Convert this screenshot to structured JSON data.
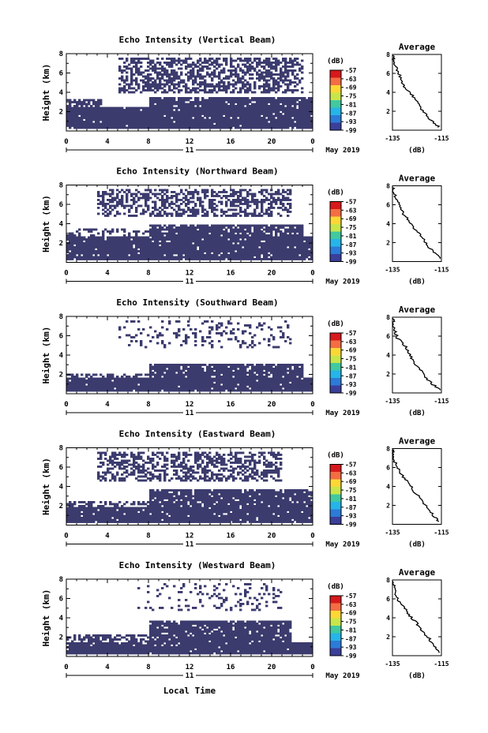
{
  "figure": {
    "x_label": "Local Time",
    "day_label": "11",
    "month_label": "May 2019"
  },
  "chart_data": [
    {
      "type": "heatmap",
      "title": "Echo Intensity (Vertical Beam)",
      "ylabel": "Height (km)",
      "xlim": [
        0,
        24
      ],
      "ylim": [
        0,
        8
      ],
      "x_ticks": [
        "0",
        "4",
        "8",
        "12",
        "16",
        "20",
        "0"
      ],
      "y_ticks": [
        "2",
        "4",
        "6",
        "8"
      ],
      "colorbar": {
        "unit": "(dB)",
        "labels": [
          "-57",
          "-63",
          "-69",
          "-75",
          "-81",
          "-87",
          "-93",
          "-99"
        ]
      },
      "layers": [
        {
          "x0": 0,
          "x1": 24,
          "y0": 0.2,
          "y1": 2.5,
          "density": 0.96
        },
        {
          "x0": 0,
          "x1": 3.5,
          "y0": 2.5,
          "y1": 3.4,
          "density": 0.7
        },
        {
          "x0": 8,
          "x1": 24,
          "y0": 2.5,
          "y1": 3.6,
          "density": 0.9
        },
        {
          "x0": 5,
          "x1": 23,
          "y0": 4.0,
          "y1": 7.6,
          "density": 0.55
        }
      ],
      "avg": {
        "title": "Average",
        "xlabel": "(dB)",
        "xlim": [
          -135,
          -115
        ],
        "x_ticks": [
          "-135",
          "-115"
        ],
        "y_ticks": [
          "2",
          "4",
          "6",
          "8"
        ],
        "profile": [
          [
            0.3,
            -116
          ],
          [
            1,
            -119
          ],
          [
            1.8,
            -122
          ],
          [
            2.6,
            -124
          ],
          [
            3.4,
            -126
          ],
          [
            4.2,
            -129
          ],
          [
            5,
            -131
          ],
          [
            5.8,
            -132
          ],
          [
            6.6,
            -133.5
          ],
          [
            7.4,
            -134.5
          ],
          [
            7.9,
            -135
          ]
        ]
      }
    },
    {
      "type": "heatmap",
      "title": "Echo Intensity (Northward Beam)",
      "ylabel": "Height (km)",
      "xlim": [
        0,
        24
      ],
      "ylim": [
        0,
        8
      ],
      "x_ticks": [
        "0",
        "4",
        "8",
        "12",
        "16",
        "20",
        "0"
      ],
      "y_ticks": [
        "2",
        "4",
        "6",
        "8"
      ],
      "colorbar": {
        "unit": "(dB)",
        "labels": [
          "-57",
          "-63",
          "-69",
          "-75",
          "-81",
          "-87",
          "-93",
          "-99"
        ]
      },
      "layers": [
        {
          "x0": 0,
          "x1": 24,
          "y0": 0.2,
          "y1": 2.6,
          "density": 0.95
        },
        {
          "x0": 0,
          "x1": 8,
          "y0": 2.6,
          "y1": 3.6,
          "density": 0.35
        },
        {
          "x0": 8,
          "x1": 23,
          "y0": 2.6,
          "y1": 4.0,
          "density": 0.9
        },
        {
          "x0": 3,
          "x1": 22,
          "y0": 4.8,
          "y1": 7.6,
          "density": 0.5
        }
      ],
      "avg": {
        "title": "Average",
        "xlabel": "(dB)",
        "xlim": [
          -135,
          -115
        ],
        "x_ticks": [
          "-135",
          "-115"
        ],
        "y_ticks": [
          "2",
          "4",
          "6",
          "8"
        ],
        "profile": [
          [
            0.3,
            -115.5
          ],
          [
            1,
            -118
          ],
          [
            1.8,
            -121
          ],
          [
            2.6,
            -123
          ],
          [
            3.4,
            -126
          ],
          [
            4.2,
            -128
          ],
          [
            5,
            -130.5
          ],
          [
            5.8,
            -132
          ],
          [
            6.6,
            -133.5
          ],
          [
            7.4,
            -134.5
          ],
          [
            7.9,
            -135
          ]
        ]
      }
    },
    {
      "type": "heatmap",
      "title": "Echo Intensity (Southward Beam)",
      "ylabel": "Height (km)",
      "xlim": [
        0,
        24
      ],
      "ylim": [
        0,
        8
      ],
      "x_ticks": [
        "0",
        "4",
        "8",
        "12",
        "16",
        "20",
        "0"
      ],
      "y_ticks": [
        "2",
        "4",
        "6",
        "8"
      ],
      "colorbar": {
        "unit": "(dB)",
        "labels": [
          "-57",
          "-63",
          "-69",
          "-75",
          "-81",
          "-87",
          "-93",
          "-99"
        ]
      },
      "layers": [
        {
          "x0": 0,
          "x1": 24,
          "y0": 0.2,
          "y1": 1.6,
          "density": 0.96
        },
        {
          "x0": 0,
          "x1": 8,
          "y0": 1.6,
          "y1": 2.0,
          "density": 0.45
        },
        {
          "x0": 8,
          "x1": 23,
          "y0": 1.6,
          "y1": 3.2,
          "density": 0.88
        },
        {
          "x0": 5,
          "x1": 22,
          "y0": 4.8,
          "y1": 7.6,
          "density": 0.18
        }
      ],
      "avg": {
        "title": "Average",
        "xlabel": "(dB)",
        "xlim": [
          -135,
          -115
        ],
        "x_ticks": [
          "-135",
          "-115"
        ],
        "y_ticks": [
          "2",
          "4",
          "6",
          "8"
        ],
        "profile": [
          [
            0.3,
            -115.5
          ],
          [
            1,
            -119
          ],
          [
            1.8,
            -122
          ],
          [
            2.6,
            -124
          ],
          [
            3.4,
            -127
          ],
          [
            4.2,
            -128
          ],
          [
            5,
            -130
          ],
          [
            5.8,
            -133
          ],
          [
            6.6,
            -134
          ],
          [
            7.4,
            -134.5
          ],
          [
            7.9,
            -135
          ]
        ]
      }
    },
    {
      "type": "heatmap",
      "title": "Echo Intensity (Eastward Beam)",
      "ylabel": "Height (km)",
      "xlim": [
        0,
        24
      ],
      "ylim": [
        0,
        8
      ],
      "x_ticks": [
        "0",
        "4",
        "8",
        "12",
        "16",
        "20",
        "0"
      ],
      "y_ticks": [
        "2",
        "4",
        "6",
        "8"
      ],
      "colorbar": {
        "unit": "(dB)",
        "labels": [
          "-57",
          "-63",
          "-69",
          "-75",
          "-81",
          "-87",
          "-93",
          "-99"
        ]
      },
      "layers": [
        {
          "x0": 0,
          "x1": 24,
          "y0": 0.2,
          "y1": 1.8,
          "density": 0.95
        },
        {
          "x0": 0,
          "x1": 8,
          "y0": 1.8,
          "y1": 2.4,
          "density": 0.4
        },
        {
          "x0": 8,
          "x1": 24,
          "y0": 1.8,
          "y1": 3.8,
          "density": 0.9
        },
        {
          "x0": 3,
          "x1": 21,
          "y0": 4.6,
          "y1": 7.6,
          "density": 0.5
        }
      ],
      "avg": {
        "title": "Average",
        "xlabel": "(dB)",
        "xlim": [
          -135,
          -115
        ],
        "x_ticks": [
          "-135",
          "-115"
        ],
        "y_ticks": [
          "2",
          "4",
          "6",
          "8"
        ],
        "profile": [
          [
            0.3,
            -116
          ],
          [
            1,
            -118.5
          ],
          [
            1.8,
            -121
          ],
          [
            2.6,
            -123
          ],
          [
            3.4,
            -126
          ],
          [
            4.2,
            -128
          ],
          [
            5,
            -130.5
          ],
          [
            5.8,
            -132.5
          ],
          [
            6.6,
            -134
          ],
          [
            7.4,
            -134.5
          ],
          [
            7.9,
            -135
          ]
        ]
      }
    },
    {
      "type": "heatmap",
      "title": "Echo Intensity (Westward Beam)",
      "ylabel": "Height (km)",
      "xlim": [
        0,
        24
      ],
      "ylim": [
        0,
        8
      ],
      "x_ticks": [
        "0",
        "4",
        "8",
        "12",
        "16",
        "20",
        "0"
      ],
      "y_ticks": [
        "2",
        "4",
        "6",
        "8"
      ],
      "colorbar": {
        "unit": "(dB)",
        "labels": [
          "-57",
          "-63",
          "-69",
          "-75",
          "-81",
          "-87",
          "-93",
          "-99"
        ]
      },
      "layers": [
        {
          "x0": 0,
          "x1": 24,
          "y0": 0.2,
          "y1": 1.4,
          "density": 0.96
        },
        {
          "x0": 0,
          "x1": 8,
          "y0": 1.4,
          "y1": 2.2,
          "density": 0.5
        },
        {
          "x0": 8,
          "x1": 22,
          "y0": 1.4,
          "y1": 3.8,
          "density": 0.9
        },
        {
          "x0": 7,
          "x1": 21,
          "y0": 4.8,
          "y1": 7.6,
          "density": 0.15
        }
      ],
      "avg": {
        "title": "Average",
        "xlabel": "(dB)",
        "xlim": [
          -135,
          -115
        ],
        "x_ticks": [
          "-135",
          "-115"
        ],
        "y_ticks": [
          "2",
          "4",
          "6",
          "8"
        ],
        "profile": [
          [
            0.3,
            -115.5
          ],
          [
            1,
            -118
          ],
          [
            1.8,
            -120
          ],
          [
            2.6,
            -123
          ],
          [
            3.4,
            -125
          ],
          [
            4.2,
            -128
          ],
          [
            5,
            -130
          ],
          [
            5.8,
            -132.5
          ],
          [
            6.6,
            -134
          ],
          [
            7.4,
            -134.5
          ],
          [
            7.9,
            -135
          ]
        ]
      }
    }
  ],
  "colors": {
    "echo": "#3b3b6e",
    "colorbar": [
      "#d7191c",
      "#f46d43",
      "#fdd835",
      "#c8e64a",
      "#41c9a0",
      "#26b5e8",
      "#2c7bd8",
      "#3a3f9a"
    ]
  }
}
